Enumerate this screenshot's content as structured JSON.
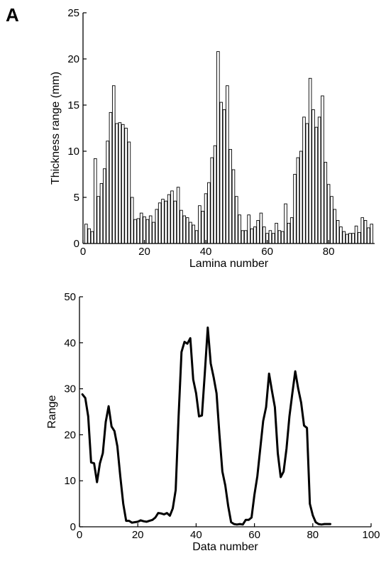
{
  "panel_label": "A",
  "chart_data": [
    {
      "type": "bar",
      "title": "",
      "xlabel": "Lamina number",
      "ylabel": "Thickness range (mm)",
      "xlim": [
        0,
        95
      ],
      "ylim": [
        0,
        25
      ],
      "xticks": [
        0,
        20,
        40,
        60,
        80
      ],
      "yticks": [
        0,
        5,
        10,
        15,
        20,
        25
      ],
      "bar_fill": "#ffffff",
      "bar_stroke": "#000000",
      "x": [
        1,
        2,
        3,
        4,
        5,
        6,
        7,
        8,
        9,
        10,
        11,
        12,
        13,
        14,
        15,
        16,
        17,
        18,
        19,
        20,
        21,
        22,
        23,
        24,
        25,
        26,
        27,
        28,
        29,
        30,
        31,
        32,
        33,
        34,
        35,
        36,
        37,
        38,
        39,
        40,
        41,
        42,
        43,
        44,
        45,
        46,
        47,
        48,
        49,
        50,
        51,
        52,
        53,
        54,
        55,
        56,
        57,
        58,
        59,
        60,
        61,
        62,
        63,
        64,
        65,
        66,
        67,
        68,
        69,
        70,
        71,
        72,
        73,
        74,
        75,
        76,
        77,
        78,
        79,
        80,
        81,
        82,
        83,
        84,
        85,
        86,
        87,
        88,
        89,
        90,
        91,
        92,
        93,
        94
      ],
      "values": [
        2.1,
        1.6,
        1.3,
        9.2,
        5.1,
        6.5,
        8.1,
        11.1,
        14.2,
        17.1,
        13.0,
        13.1,
        12.9,
        12.5,
        11.0,
        5.0,
        2.6,
        2.7,
        3.3,
        2.9,
        2.6,
        3.0,
        2.3,
        3.7,
        4.4,
        4.8,
        4.6,
        5.3,
        5.7,
        4.6,
        6.1,
        3.6,
        3.0,
        2.8,
        2.3,
        2.0,
        1.4,
        4.1,
        3.5,
        5.4,
        6.6,
        9.3,
        10.6,
        20.8,
        15.3,
        14.5,
        17.1,
        10.2,
        8.0,
        5.1,
        3.1,
        1.4,
        1.4,
        3.1,
        1.6,
        1.8,
        2.5,
        3.3,
        1.8,
        1.1,
        1.4,
        1.1,
        2.2,
        1.4,
        1.3,
        4.3,
        2.2,
        2.8,
        7.5,
        9.3,
        10.0,
        13.7,
        13.0,
        17.9,
        14.5,
        12.6,
        13.7,
        16.0,
        8.8,
        6.4,
        5.1,
        3.7,
        2.5,
        1.8,
        1.3,
        1.0,
        1.1,
        1.1,
        1.9,
        1.2,
        2.8,
        2.5,
        1.7,
        2.1
      ]
    },
    {
      "type": "line",
      "title": "",
      "xlabel": "Data number",
      "ylabel": "Range",
      "xlim": [
        0,
        100
      ],
      "ylim": [
        0,
        50
      ],
      "xticks": [
        0,
        20,
        40,
        60,
        80,
        100
      ],
      "yticks": [
        0,
        10,
        20,
        30,
        40,
        50
      ],
      "line_color": "#000000",
      "x": [
        1,
        2,
        3,
        4,
        5,
        6,
        7,
        8,
        9,
        10,
        11,
        12,
        13,
        14,
        15,
        16,
        17,
        18,
        19,
        20,
        21,
        22,
        23,
        24,
        25,
        26,
        27,
        28,
        29,
        30,
        31,
        32,
        33,
        34,
        35,
        36,
        37,
        38,
        39,
        40,
        41,
        42,
        43,
        44,
        45,
        46,
        47,
        48,
        49,
        50,
        51,
        52,
        53,
        54,
        55,
        56,
        57,
        58,
        59,
        60,
        61,
        62,
        63,
        64,
        65,
        66,
        67,
        68,
        69,
        70,
        71,
        72,
        73,
        74,
        75,
        76,
        77,
        78,
        79,
        80,
        81,
        82,
        83,
        84,
        85,
        86
      ],
      "y": [
        28.8,
        28.0,
        24.0,
        14.0,
        13.8,
        9.7,
        13.8,
        16.0,
        22.8,
        26.2,
        21.8,
        20.8,
        17.5,
        11.0,
        5.0,
        1.3,
        1.3,
        0.9,
        1.0,
        1.1,
        1.4,
        1.2,
        1.1,
        1.3,
        1.5,
        2.0,
        3.0,
        2.9,
        2.7,
        3.0,
        2.4,
        4.0,
        8.0,
        24.0,
        38.0,
        40.2,
        39.8,
        41.0,
        32.0,
        29.0,
        24.0,
        24.2,
        33.5,
        43.3,
        35.5,
        32.5,
        29.0,
        20.0,
        12.0,
        9.0,
        4.5,
        1.0,
        0.6,
        0.5,
        0.6,
        0.5,
        1.5,
        1.5,
        2.0,
        7.0,
        11.0,
        17.0,
        23.0,
        26.0,
        33.3,
        29.5,
        26.0,
        16.0,
        10.8,
        12.0,
        17.0,
        24.0,
        29.0,
        33.8,
        30.0,
        27.0,
        22.0,
        21.5,
        5.0,
        2.5,
        1.0,
        0.6,
        0.5,
        0.6,
        0.6,
        0.6
      ]
    }
  ]
}
